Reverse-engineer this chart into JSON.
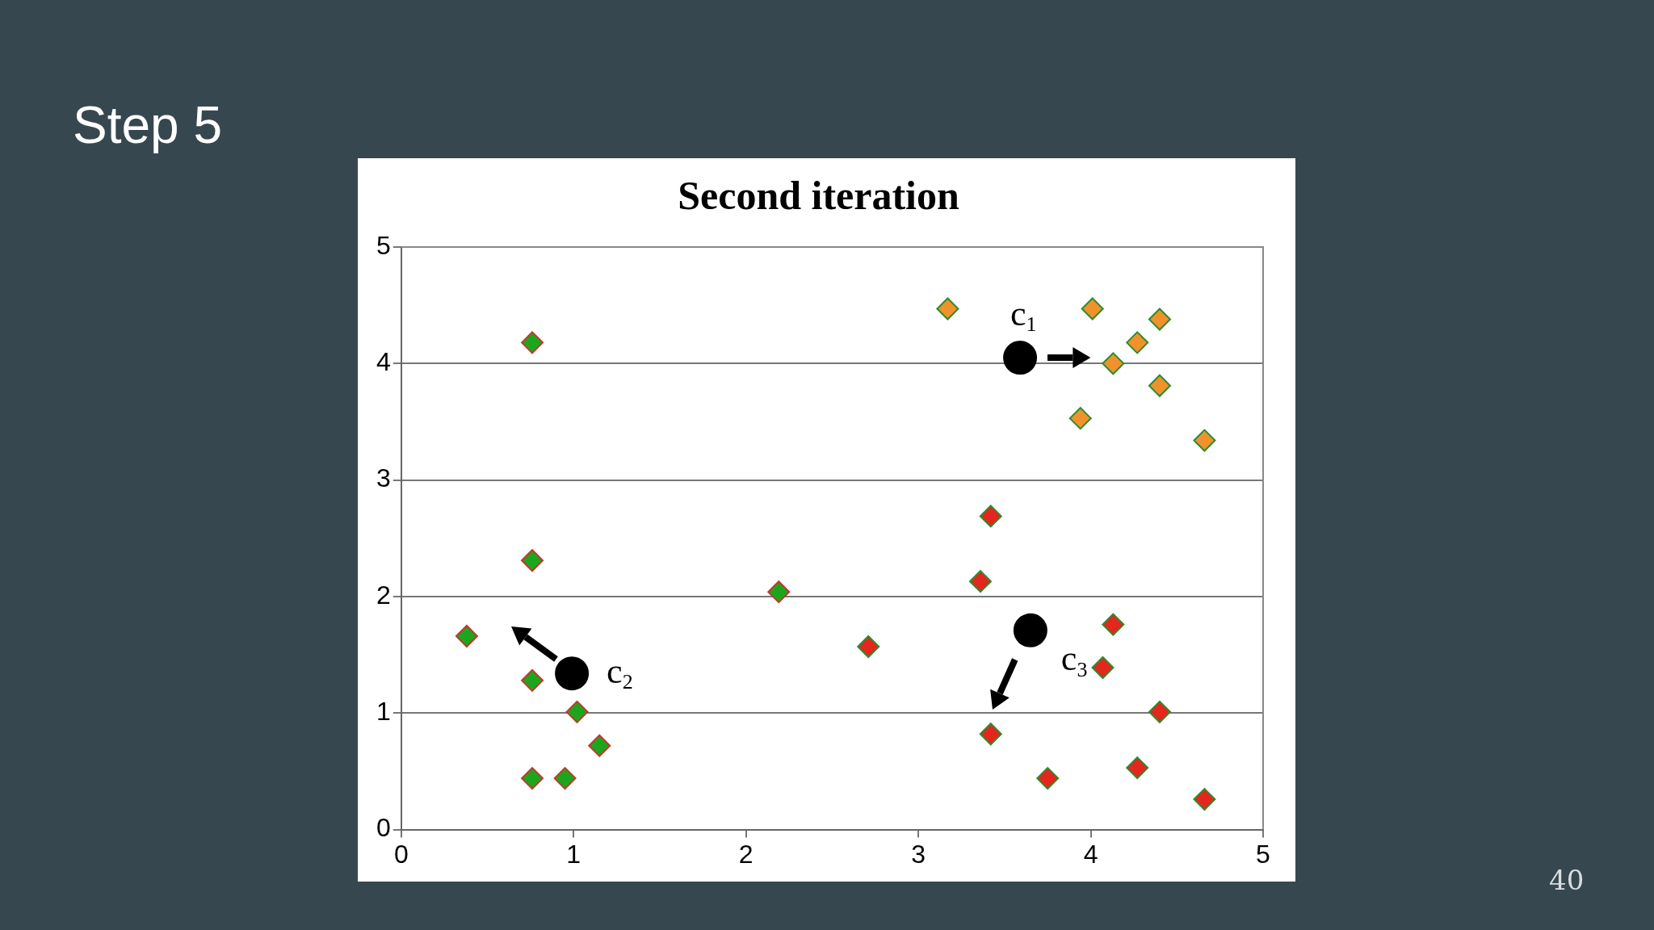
{
  "chart_data": {
    "type": "scatter",
    "title": "Step 5",
    "subtitle": "Second iteration",
    "xlim": [
      0,
      5
    ],
    "xticks": [
      0,
      1,
      2,
      3,
      4,
      5
    ],
    "ylim": [
      0,
      5
    ],
    "yticks": [
      0,
      1,
      2,
      3,
      4,
      5
    ],
    "grid": "y",
    "legend": false,
    "marker": "diamond",
    "series": [
      {
        "color": "#1ea51e",
        "x": [
          0.76,
          0.76,
          2.19,
          0.38,
          0.76,
          1.02,
          1.15,
          0.76,
          0.95
        ],
        "values": [
          4.18,
          2.31,
          2.04,
          1.66,
          1.28,
          1.01,
          0.72,
          0.44,
          0.44
        ]
      },
      {
        "color": "#f0922c",
        "x": [
          3.17,
          4.01,
          4.4,
          4.27,
          4.13,
          4.4,
          3.94,
          4.66
        ],
        "values": [
          4.47,
          4.47,
          4.38,
          4.18,
          4,
          3.81,
          3.53,
          3.34
        ]
      },
      {
        "color": "#e3261e",
        "x": [
          3.42,
          3.36,
          2.71,
          4.13,
          4.07,
          4.4,
          3.42,
          3.75,
          4.27,
          4.66
        ],
        "values": [
          2.69,
          2.13,
          1.57,
          1.76,
          1.39,
          1.01,
          0.82,
          0.44,
          0.53,
          0.26
        ]
      },
      {
        "color": "#000000",
        "marker": "circle",
        "x": [
          3.59,
          0.99,
          3.65
        ],
        "values": [
          4.05,
          1.34,
          1.71
        ]
      }
    ],
    "annotations": [
      "40",
      {
        "text": "c$_{1}$",
        "x": 3.59,
        "y": 4.05
      },
      {
        "text": "c$_{2}$",
        "x": 0.99,
        "y": 1.34
      },
      {
        "text": "c$_{3}$",
        "x": 3.65,
        "y": 1.71
      }
    ]
  }
}
